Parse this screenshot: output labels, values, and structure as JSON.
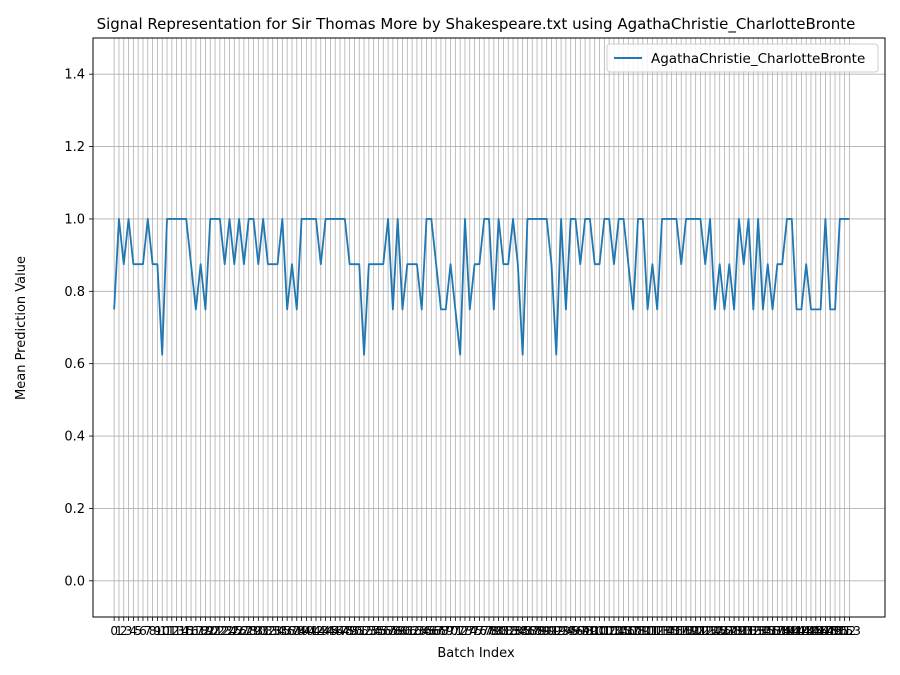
{
  "chart_data": {
    "type": "line",
    "title": "Signal Representation for Sir Thomas More by Shakespeare.txt using AgathaChristie_CharlotteBronte",
    "xlabel": "Batch Index",
    "ylabel": "Mean Prediction Value",
    "ylim": [
      -0.1,
      1.5
    ],
    "xlim": [
      -4.4,
      160.4
    ],
    "yticks": [
      "0.0",
      "0.2",
      "0.4",
      "0.6",
      "0.8",
      "1.0",
      "1.2",
      "1.4"
    ],
    "grid": true,
    "legend_position": "upper right",
    "series": [
      {
        "name": "AgathaChristie_CharlotteBronte",
        "color": "#1f77b4",
        "values": [
          0.75,
          1.0,
          0.875,
          1.0,
          0.875,
          0.875,
          0.875,
          1.0,
          0.875,
          0.875,
          0.625,
          1.0,
          1.0,
          1.0,
          1.0,
          1.0,
          0.875,
          0.75,
          0.875,
          0.75,
          1.0,
          1.0,
          1.0,
          0.875,
          1.0,
          0.875,
          1.0,
          0.875,
          1.0,
          1.0,
          0.875,
          1.0,
          0.875,
          0.875,
          0.875,
          1.0,
          0.75,
          0.875,
          0.75,
          1.0,
          1.0,
          1.0,
          1.0,
          0.875,
          1.0,
          1.0,
          1.0,
          1.0,
          1.0,
          0.875,
          0.875,
          0.875,
          0.625,
          0.875,
          0.875,
          0.875,
          0.875,
          1.0,
          0.75,
          1.0,
          0.75,
          0.875,
          0.875,
          0.875,
          0.75,
          1.0,
          1.0,
          0.875,
          0.75,
          0.75,
          0.875,
          0.75,
          0.625,
          1.0,
          0.75,
          0.875,
          0.875,
          1.0,
          1.0,
          0.75,
          1.0,
          0.875,
          0.875,
          1.0,
          0.875,
          0.625,
          1.0,
          1.0,
          1.0,
          1.0,
          1.0,
          0.875,
          0.625,
          1.0,
          0.75,
          1.0,
          1.0,
          0.875,
          1.0,
          1.0,
          0.875,
          0.875,
          1.0,
          1.0,
          0.875,
          1.0,
          1.0,
          0.875,
          0.75,
          1.0,
          1.0,
          0.75,
          0.875,
          0.75,
          1.0,
          1.0,
          1.0,
          1.0,
          0.875,
          1.0,
          1.0,
          1.0,
          1.0,
          0.875,
          1.0,
          0.75,
          0.875,
          0.75,
          0.875,
          0.75,
          1.0,
          0.875,
          1.0,
          0.75,
          1.0,
          0.75,
          0.875,
          0.75,
          0.875,
          0.875,
          1.0,
          1.0,
          0.75,
          0.75,
          0.875,
          0.75,
          0.75,
          0.75,
          1.0,
          0.75,
          0.75,
          1.0,
          1.0,
          1.0
        ]
      }
    ]
  }
}
